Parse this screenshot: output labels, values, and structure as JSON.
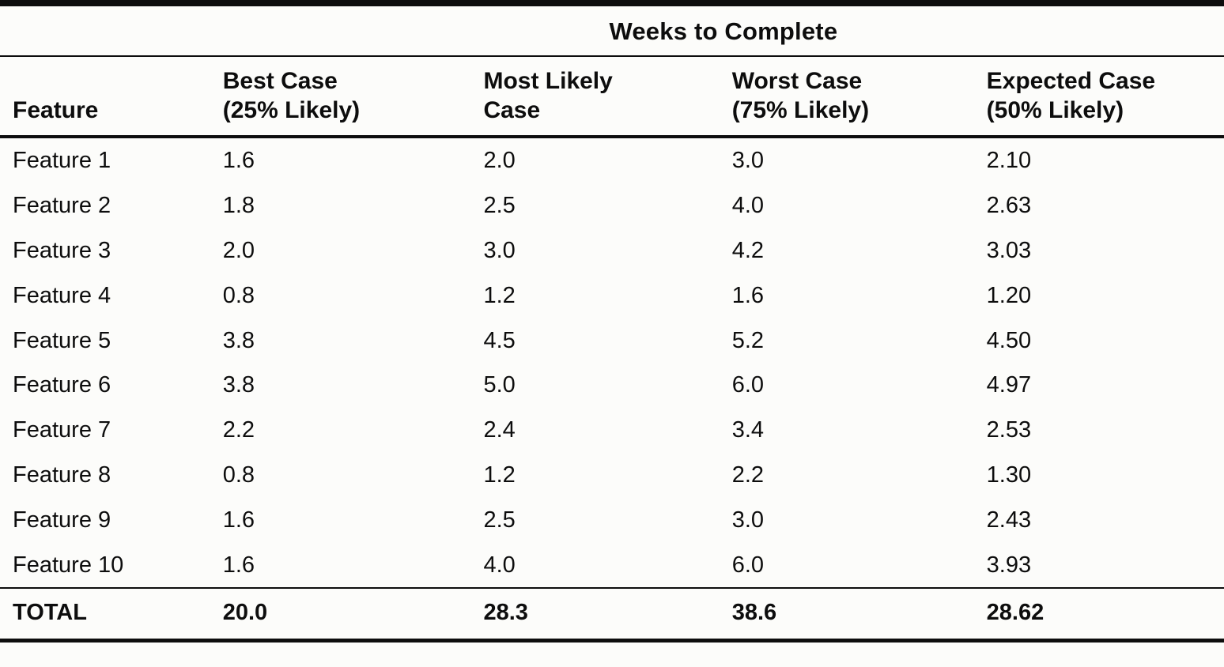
{
  "page": {
    "background_color": "#fcfcfa",
    "ink_color": "#0d0d0d"
  },
  "table": {
    "title": "Weeks to Complete",
    "columns": {
      "feature": "Feature",
      "best_case": "Best Case\n(25% Likely)",
      "most_likely": "Most Likely\nCase",
      "worst_case": "Worst Case\n(75% Likely)",
      "expected_case": "Expected Case\n(50% Likely)"
    },
    "rows": [
      {
        "feature": "Feature 1",
        "best": "1.6",
        "most_likely": "2.0",
        "worst": "3.0",
        "expected": "2.10"
      },
      {
        "feature": "Feature 2",
        "best": "1.8",
        "most_likely": "2.5",
        "worst": "4.0",
        "expected": "2.63"
      },
      {
        "feature": "Feature 3",
        "best": "2.0",
        "most_likely": "3.0",
        "worst": "4.2",
        "expected": "3.03"
      },
      {
        "feature": "Feature 4",
        "best": "0.8",
        "most_likely": "1.2",
        "worst": "1.6",
        "expected": "1.20"
      },
      {
        "feature": "Feature 5",
        "best": "3.8",
        "most_likely": "4.5",
        "worst": "5.2",
        "expected": "4.50"
      },
      {
        "feature": "Feature 6",
        "best": "3.8",
        "most_likely": "5.0",
        "worst": "6.0",
        "expected": "4.97"
      },
      {
        "feature": "Feature 7",
        "best": "2.2",
        "most_likely": "2.4",
        "worst": "3.4",
        "expected": "2.53"
      },
      {
        "feature": "Feature 8",
        "best": "0.8",
        "most_likely": "1.2",
        "worst": "2.2",
        "expected": "1.30"
      },
      {
        "feature": "Feature 9",
        "best": "1.6",
        "most_likely": "2.5",
        "worst": "3.0",
        "expected": "2.43"
      },
      {
        "feature": "Feature 10",
        "best": "1.6",
        "most_likely": "4.0",
        "worst": "6.0",
        "expected": "3.93"
      }
    ],
    "total": {
      "feature": "TOTAL",
      "best": "20.0",
      "most_likely": "28.3",
      "worst": "38.6",
      "expected": "28.62"
    }
  }
}
